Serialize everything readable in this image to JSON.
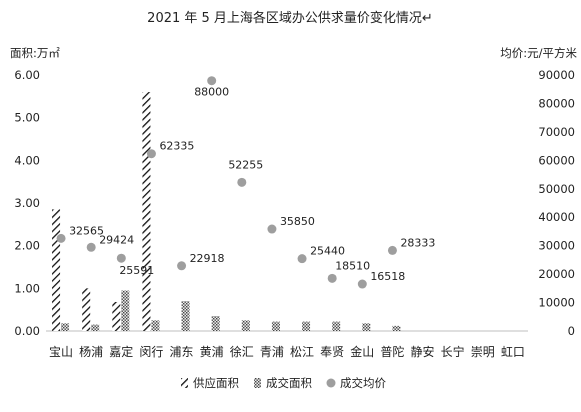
{
  "chart_data": {
    "type": "bar",
    "title": "2021 年 5 月上海各区域办公供求量价变化情况↵",
    "ylabel_left": "面积:万㎡",
    "ylabel_right": "均价:元/平方米",
    "categories": [
      "宝山",
      "杨浦",
      "嘉定",
      "闵行",
      "浦东",
      "黄浦",
      "徐汇",
      "青浦",
      "松江",
      "奉贤",
      "金山",
      "普陀",
      "静安",
      "长宁",
      "崇明",
      "虹口"
    ],
    "left_axis": {
      "min": 0,
      "max": 6,
      "ticks": [
        "0.00",
        "1.00",
        "2.00",
        "3.00",
        "4.00",
        "5.00",
        "6.00"
      ]
    },
    "right_axis": {
      "min": 0,
      "max": 90000,
      "ticks": [
        "0",
        "10000",
        "20000",
        "30000",
        "40000",
        "50000",
        "60000",
        "70000",
        "80000",
        "90000"
      ]
    },
    "series": [
      {
        "name": "供应面积",
        "kind": "bar",
        "axis": "left",
        "pattern": "diagonal",
        "values": [
          2.85,
          1.0,
          0.68,
          5.6,
          0,
          0,
          0,
          0,
          0,
          0,
          0,
          0,
          0,
          0,
          0,
          0
        ]
      },
      {
        "name": "成交面积",
        "kind": "bar",
        "axis": "left",
        "pattern": "dots",
        "values": [
          0.18,
          0.15,
          0.95,
          0.25,
          0.7,
          0.35,
          0.25,
          0.22,
          0.22,
          0.22,
          0.18,
          0.12,
          0,
          0,
          0,
          0
        ]
      },
      {
        "name": "成交均价",
        "kind": "scatter",
        "axis": "right",
        "color": "#9e9e9e",
        "values": [
          32565,
          29424,
          25591,
          62335,
          22918,
          88000,
          52255,
          35850,
          25440,
          18510,
          16518,
          28333,
          null,
          null,
          null,
          null
        ],
        "labels": [
          "32565",
          "29424",
          "25591",
          "62335",
          "22918",
          "88000",
          "52255",
          "35850",
          "25440",
          "18510",
          "16518",
          "28333",
          "",
          "",
          "",
          ""
        ]
      }
    ],
    "grid": false,
    "legend": "bottom"
  }
}
